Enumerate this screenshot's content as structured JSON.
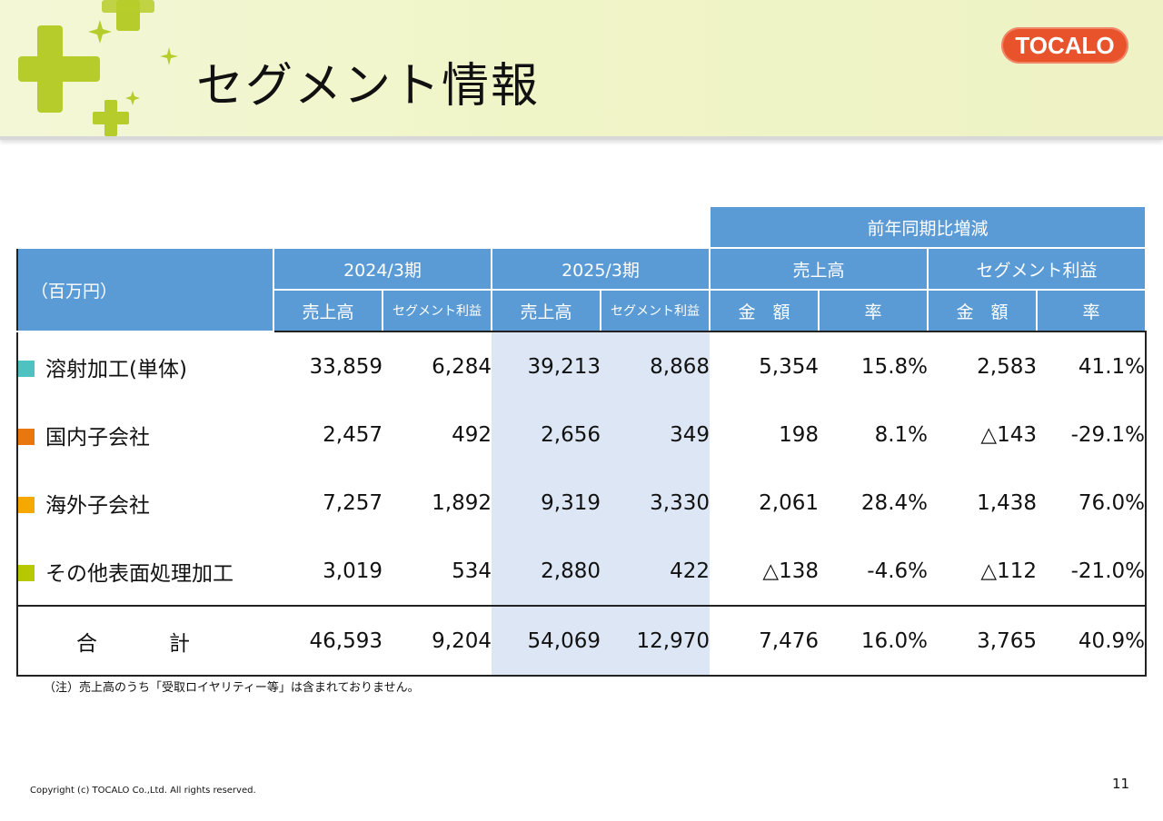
{
  "header": {
    "title": "セグメント情報",
    "logo_text": "TOCALO"
  },
  "table": {
    "unit_label": "（百万円）",
    "yoy_group": "前年同期比増減",
    "periods": [
      "2024/3期",
      "2025/3期"
    ],
    "yoy_subgroups": [
      "売上高",
      "セグメント利益"
    ],
    "sub_headers": {
      "sales": "売上高",
      "segment_profit": "セグメント利益",
      "amount": "金　額",
      "rate": "率"
    },
    "rows": [
      {
        "label": "溶射加工(単体)",
        "color": "#4fc1c0",
        "values": [
          "33,859",
          "6,284",
          "39,213",
          "8,868",
          "5,354",
          "15.8%",
          "2,583",
          "41.1%"
        ]
      },
      {
        "label": "国内子会社",
        "color": "#e9770f",
        "values": [
          "2,457",
          "492",
          "2,656",
          "349",
          "198",
          "8.1%",
          "△143",
          "-29.1%"
        ]
      },
      {
        "label": "海外子会社",
        "color": "#f5a800",
        "values": [
          "7,257",
          "1,892",
          "9,319",
          "3,330",
          "2,061",
          "28.4%",
          "1,438",
          "76.0%"
        ]
      },
      {
        "label": "その他表面処理加工",
        "color": "#b5c800",
        "values": [
          "3,019",
          "534",
          "2,880",
          "422",
          "△138",
          "-4.6%",
          "△112",
          "-21.0%"
        ]
      }
    ],
    "total": {
      "label": "合　計",
      "values": [
        "46,593",
        "9,204",
        "54,069",
        "12,970",
        "7,476",
        "16.0%",
        "3,765",
        "40.9%"
      ]
    }
  },
  "footer": {
    "note": "（注）売上高のうち「受取ロイヤリティー等」は含まれておりません。",
    "copyright": "Copyright (c) TOCALO Co.,Ltd. All rights reserved.",
    "page_number": "11"
  },
  "colors": {
    "header_blue": "#5b9bd5",
    "shade_blue": "#dde6f4",
    "logo_orange": "#e8532b",
    "sparkle_green": "#b6cc2a"
  }
}
